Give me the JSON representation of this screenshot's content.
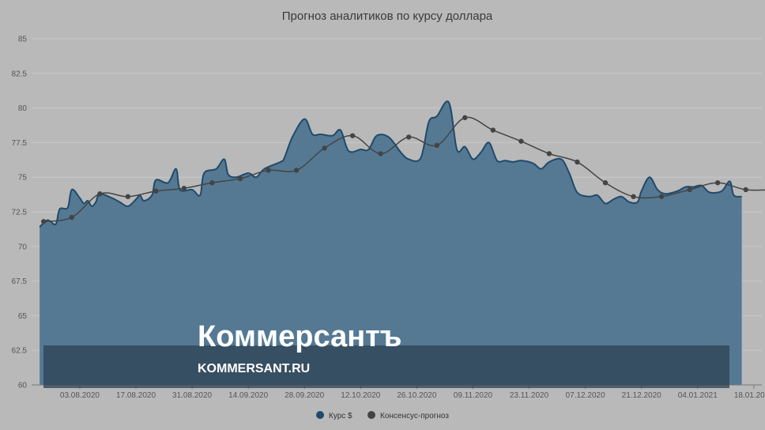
{
  "chart_data": {
    "type": "area",
    "title": "Прогноз аналитиков по курсу доллара",
    "ylim": [
      60,
      85
    ],
    "yticks": [
      "85",
      "82.5",
      "80",
      "77.5",
      "75",
      "72.5",
      "70",
      "67.5",
      "65",
      "62.5",
      "60"
    ],
    "xticks": [
      "03.08.2020",
      "17.08.2020",
      "31.08.2020",
      "14.09.2020",
      "28.09.2020",
      "12.10.2020",
      "26.10.2020",
      "09.11.2020",
      "23.11.2020",
      "07.12.2020",
      "21.12.2020",
      "04.01.2021",
      "18.01.2021"
    ],
    "xlim": [
      "2020-07-22",
      "2021-01-20"
    ],
    "grid": true,
    "legend_position": "bottom",
    "series": [
      {
        "name": "Курс $",
        "type": "area",
        "color": "#4f7590",
        "line_color": "#1f4a6b",
        "points": [
          [
            "2020-07-24",
            71.4
          ],
          [
            "2020-07-26",
            71.9
          ],
          [
            "2020-07-28",
            71.6
          ],
          [
            "2020-07-29",
            72.7
          ],
          [
            "2020-07-31",
            72.8
          ],
          [
            "2020-08-01",
            74.1
          ],
          [
            "2020-08-03",
            73.5
          ],
          [
            "2020-08-04",
            73.1
          ],
          [
            "2020-08-05",
            73.3
          ],
          [
            "2020-08-06",
            72.9
          ],
          [
            "2020-08-07",
            73.2
          ],
          [
            "2020-08-08",
            73.8
          ],
          [
            "2020-08-11",
            73.5
          ],
          [
            "2020-08-13",
            73.2
          ],
          [
            "2020-08-15",
            72.9
          ],
          [
            "2020-08-17",
            73.4
          ],
          [
            "2020-08-18",
            73.7
          ],
          [
            "2020-08-19",
            73.3
          ],
          [
            "2020-08-21",
            73.7
          ],
          [
            "2020-08-22",
            74.8
          ],
          [
            "2020-08-25",
            74.6
          ],
          [
            "2020-08-27",
            75.6
          ],
          [
            "2020-08-28",
            74.1
          ],
          [
            "2020-08-31",
            74.1
          ],
          [
            "2020-09-02",
            73.7
          ],
          [
            "2020-09-03",
            75.3
          ],
          [
            "2020-09-06",
            75.6
          ],
          [
            "2020-09-08",
            76.3
          ],
          [
            "2020-09-09",
            75.2
          ],
          [
            "2020-09-11",
            75.0
          ],
          [
            "2020-09-14",
            75.3
          ],
          [
            "2020-09-16",
            75.0
          ],
          [
            "2020-09-18",
            75.6
          ],
          [
            "2020-09-22",
            76.1
          ],
          [
            "2020-09-23",
            76.4
          ],
          [
            "2020-09-25",
            77.9
          ],
          [
            "2020-09-28",
            79.2
          ],
          [
            "2020-09-30",
            78.1
          ],
          [
            "2020-10-02",
            78.1
          ],
          [
            "2020-10-05",
            78.0
          ],
          [
            "2020-10-07",
            78.4
          ],
          [
            "2020-10-09",
            76.9
          ],
          [
            "2020-10-12",
            77.0
          ],
          [
            "2020-10-14",
            77.0
          ],
          [
            "2020-10-16",
            78.0
          ],
          [
            "2020-10-19",
            77.9
          ],
          [
            "2020-10-22",
            76.8
          ],
          [
            "2020-10-24",
            76.3
          ],
          [
            "2020-10-27",
            76.4
          ],
          [
            "2020-10-29",
            79.0
          ],
          [
            "2020-10-31",
            79.4
          ],
          [
            "2020-11-03",
            80.4
          ],
          [
            "2020-11-05",
            77.0
          ],
          [
            "2020-11-07",
            77.2
          ],
          [
            "2020-11-09",
            76.3
          ],
          [
            "2020-11-11",
            76.8
          ],
          [
            "2020-11-13",
            77.5
          ],
          [
            "2020-11-15",
            76.2
          ],
          [
            "2020-11-17",
            76.2
          ],
          [
            "2020-11-19",
            76.1
          ],
          [
            "2020-11-21",
            76.2
          ],
          [
            "2020-11-24",
            76.0
          ],
          [
            "2020-11-26",
            75.6
          ],
          [
            "2020-11-28",
            76.1
          ],
          [
            "2020-12-01",
            76.3
          ],
          [
            "2020-12-03",
            75.3
          ],
          [
            "2020-12-05",
            73.9
          ],
          [
            "2020-12-08",
            73.6
          ],
          [
            "2020-12-10",
            73.7
          ],
          [
            "2020-12-12",
            73.1
          ],
          [
            "2020-12-14",
            73.4
          ],
          [
            "2020-12-16",
            73.6
          ],
          [
            "2020-12-18",
            73.2
          ],
          [
            "2020-12-20",
            73.2
          ],
          [
            "2020-12-21",
            74.0
          ],
          [
            "2020-12-23",
            75.0
          ],
          [
            "2020-12-25",
            74.1
          ],
          [
            "2020-12-27",
            73.8
          ],
          [
            "2020-12-30",
            74.0
          ],
          [
            "2021-01-01",
            74.3
          ],
          [
            "2021-01-03",
            74.3
          ],
          [
            "2021-01-05",
            74.4
          ],
          [
            "2021-01-07",
            73.9
          ],
          [
            "2021-01-10",
            74.0
          ],
          [
            "2021-01-12",
            74.7
          ],
          [
            "2021-01-13",
            73.7
          ],
          [
            "2021-01-15",
            73.6
          ]
        ]
      },
      {
        "name": "Консенсус-прогноз",
        "type": "line",
        "color": "#444444",
        "points": [
          [
            "2020-07-25",
            71.8
          ],
          [
            "2020-08-01",
            72.1
          ],
          [
            "2020-08-08",
            73.8
          ],
          [
            "2020-08-15",
            73.6
          ],
          [
            "2020-08-22",
            74.0
          ],
          [
            "2020-08-29",
            74.2
          ],
          [
            "2020-09-05",
            74.6
          ],
          [
            "2020-09-12",
            74.9
          ],
          [
            "2020-09-19",
            75.5
          ],
          [
            "2020-09-26",
            75.5
          ],
          [
            "2020-10-03",
            77.1
          ],
          [
            "2020-10-10",
            78.0
          ],
          [
            "2020-10-17",
            76.7
          ],
          [
            "2020-10-24",
            77.9
          ],
          [
            "2020-10-31",
            77.3
          ],
          [
            "2020-11-07",
            79.3
          ],
          [
            "2020-11-14",
            78.4
          ],
          [
            "2020-11-21",
            77.6
          ],
          [
            "2020-11-28",
            76.7
          ],
          [
            "2020-12-05",
            76.1
          ],
          [
            "2020-12-12",
            74.6
          ],
          [
            "2020-12-19",
            73.6
          ],
          [
            "2020-12-26",
            73.6
          ],
          [
            "2021-01-02",
            74.1
          ],
          [
            "2021-01-09",
            74.6
          ],
          [
            "2021-01-16",
            74.1
          ],
          [
            "2021-01-23",
            74.1
          ]
        ]
      }
    ]
  },
  "watermark": {
    "brand": "Коммерсантъ",
    "url": "KOMMERSANT.RU"
  }
}
